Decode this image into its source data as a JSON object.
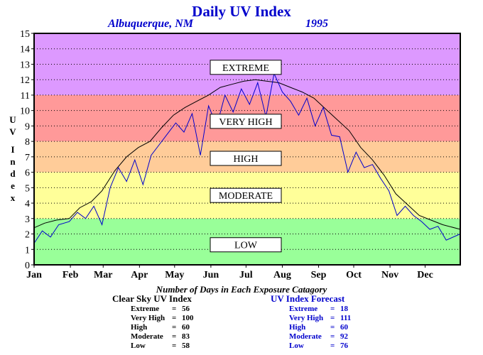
{
  "header": {
    "title": "Daily UV Index",
    "location": "Albuquerque, NM",
    "year": "1995"
  },
  "y_axis_letters": [
    "U",
    "V",
    "I",
    "n",
    "d",
    "e",
    "x"
  ],
  "counts_title": "Number of Days in Each Exposure Catagory",
  "clear_sky": {
    "title": "Clear Sky UV Index",
    "rows": [
      {
        "label": "Extreme",
        "value": "56"
      },
      {
        "label": "Very High",
        "value": "100"
      },
      {
        "label": "High",
        "value": "60"
      },
      {
        "label": "Moderate",
        "value": "83"
      },
      {
        "label": "Low",
        "value": "58"
      }
    ]
  },
  "forecast": {
    "title": "UV Index Forecast",
    "rows": [
      {
        "label": "Extreme",
        "value": "18"
      },
      {
        "label": "Very High",
        "value": "111"
      },
      {
        "label": "High",
        "value": "60"
      },
      {
        "label": "Moderate",
        "value": "92"
      },
      {
        "label": "Low",
        "value": "76"
      }
    ]
  },
  "chart_data": {
    "type": "line",
    "title": "Daily UV Index",
    "ylabel": "UV Index",
    "ylim": [
      0,
      15
    ],
    "xlim": [
      1,
      365
    ],
    "y_ticks": [
      "0",
      "1",
      "2",
      "3",
      "4",
      "5",
      "6",
      "7",
      "8",
      "9",
      "10",
      "11",
      "12",
      "13",
      "14",
      "15"
    ],
    "months": [
      "Jan",
      "Feb",
      "Mar",
      "Apr",
      "May",
      "Jun",
      "Jul",
      "Aug",
      "Sep",
      "Oct",
      "Nov",
      "Dec"
    ],
    "month_start_days": [
      1,
      32,
      60,
      91,
      121,
      152,
      182,
      213,
      244,
      274,
      305,
      335
    ],
    "grid": true,
    "bands": [
      {
        "name": "LOW",
        "from": 0,
        "to": 3,
        "color": "#99ff99"
      },
      {
        "name": "MODERATE",
        "from": 3,
        "to": 6,
        "color": "#ffff99"
      },
      {
        "name": "HIGH",
        "from": 6,
        "to": 8,
        "color": "#ffcc99"
      },
      {
        "name": "VERY HIGH",
        "from": 8,
        "to": 11,
        "color": "#ff9999"
      },
      {
        "name": "EXTREME",
        "from": 11,
        "to": 15,
        "color": "#dd99ff"
      }
    ],
    "band_labels": [
      {
        "text": "EXTREME",
        "value": 12.8
      },
      {
        "text": "VERY HIGH",
        "value": 9.3
      },
      {
        "text": "HIGH",
        "value": 6.9
      },
      {
        "text": "MODERATE",
        "value": 4.5
      },
      {
        "text": "LOW",
        "value": 1.3
      }
    ],
    "series": [
      {
        "color": "#000000",
        "x": [
          1,
          10,
          20,
          31,
          40,
          50,
          59,
          70,
          80,
          90,
          100,
          110,
          120,
          130,
          140,
          150,
          160,
          170,
          180,
          190,
          200,
          210,
          220,
          230,
          240,
          250,
          260,
          270,
          280,
          290,
          300,
          310,
          320,
          330,
          340,
          350,
          365
        ],
        "y": [
          2.4,
          2.7,
          2.9,
          3.0,
          3.7,
          4.1,
          4.8,
          6.1,
          7.0,
          7.6,
          8.0,
          8.9,
          9.7,
          10.2,
          10.6,
          11.0,
          11.5,
          11.7,
          11.9,
          12.0,
          11.9,
          11.8,
          11.5,
          11.2,
          10.8,
          10.1,
          9.4,
          8.7,
          7.6,
          6.8,
          5.8,
          4.6,
          3.9,
          3.2,
          2.9,
          2.6,
          2.3
        ]
      },
      {
        "color": "#0000cc",
        "x": [
          1,
          8,
          15,
          22,
          31,
          38,
          45,
          52,
          59,
          66,
          73,
          80,
          87,
          94,
          101,
          108,
          115,
          122,
          129,
          136,
          143,
          150,
          157,
          164,
          171,
          178,
          185,
          192,
          199,
          206,
          213,
          220,
          227,
          234,
          241,
          248,
          255,
          262,
          269,
          276,
          283,
          290,
          297,
          304,
          311,
          318,
          325,
          332,
          339,
          346,
          353,
          365
        ],
        "y": [
          1.4,
          2.2,
          1.8,
          2.6,
          2.8,
          3.4,
          3.0,
          3.8,
          2.6,
          5.0,
          6.3,
          5.4,
          6.8,
          5.2,
          7.1,
          7.8,
          8.5,
          9.2,
          8.6,
          9.8,
          7.1,
          10.3,
          9.0,
          11.0,
          9.9,
          11.4,
          10.4,
          11.8,
          9.6,
          12.4,
          11.2,
          10.6,
          9.7,
          10.8,
          9.0,
          10.2,
          8.4,
          8.3,
          6.0,
          7.3,
          6.3,
          6.5,
          5.6,
          4.8,
          3.2,
          3.8,
          3.2,
          2.8,
          2.3,
          2.5,
          1.6,
          2.0
        ]
      }
    ]
  }
}
